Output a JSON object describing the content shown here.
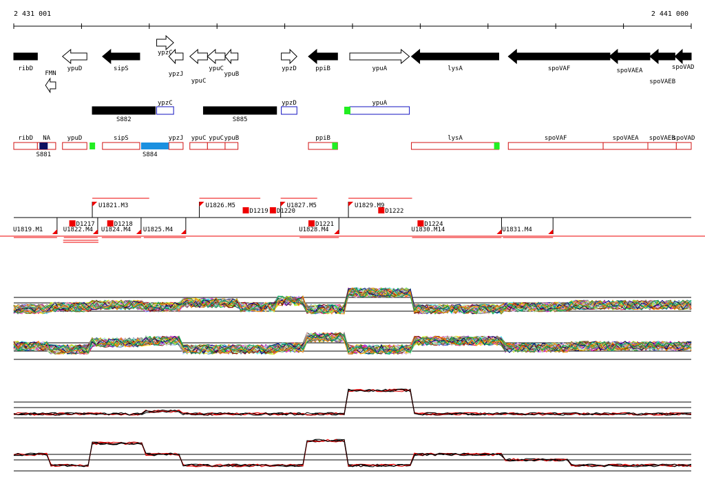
{
  "genome_browser": {
    "coordinates": {
      "start_label": "2 431 001",
      "end_label": "2 441 000",
      "start": 2431001,
      "end": 2441000
    },
    "genes": [
      {
        "name": "ribD",
        "filled": true,
        "dir": "none",
        "start": 2431001,
        "end": 2431350
      },
      {
        "name": "FMN",
        "filled": false,
        "dir": "left",
        "start": 2431470,
        "end": 2431620,
        "row": "lower"
      },
      {
        "name": "ypuD",
        "filled": false,
        "dir": "left",
        "start": 2431720,
        "end": 2432080
      },
      {
        "name": "sipS",
        "filled": true,
        "dir": "left",
        "start": 2432310,
        "end": 2432860
      },
      {
        "name": "ypzC",
        "filled": false,
        "dir": "right",
        "start": 2433110,
        "end": 2433360,
        "row": "upper"
      },
      {
        "name": "ypzJ",
        "filled": false,
        "dir": "left",
        "start": 2433290,
        "end": 2433500
      },
      {
        "name": "ypuC",
        "filled": false,
        "dir": "left",
        "start": 2433600,
        "end": 2433860
      },
      {
        "name": "ypuC",
        "filled": false,
        "dir": "left",
        "start": 2433860,
        "end": 2434120
      },
      {
        "name": "ypuB",
        "filled": false,
        "dir": "left",
        "start": 2434120,
        "end": 2434310
      },
      {
        "name": "ypzD",
        "filled": false,
        "dir": "right",
        "start": 2434950,
        "end": 2435180
      },
      {
        "name": "ppiB",
        "filled": true,
        "dir": "left",
        "start": 2435350,
        "end": 2435780
      },
      {
        "name": "ypuA",
        "filled": false,
        "dir": "right",
        "start": 2435960,
        "end": 2436840
      },
      {
        "name": "lysA",
        "filled": true,
        "dir": "left",
        "start": 2436870,
        "end": 2438160
      },
      {
        "name": "spoVAF",
        "filled": true,
        "dir": "left",
        "start": 2438300,
        "end": 2439800
      },
      {
        "name": "spoVAEA",
        "filled": true,
        "dir": "left",
        "start": 2439790,
        "end": 2440390
      },
      {
        "name": "spoVAEB",
        "filled": true,
        "dir": "left",
        "start": 2440390,
        "end": 2440760
      },
      {
        "name": "spoVAD",
        "filled": true,
        "dir": "left",
        "start": 2440760,
        "end": 2441000
      }
    ],
    "segments": [
      {
        "label": "S882",
        "start": 2432160,
        "end": 2433090,
        "filled": true
      },
      {
        "label": "ypzC",
        "start": 2433110,
        "end": 2433360,
        "filled": false
      },
      {
        "label": "S885",
        "start": 2433800,
        "end": 2434880,
        "filled": true
      },
      {
        "label": "ypzD",
        "start": 2434950,
        "end": 2435180,
        "filled": false
      },
      {
        "label": "ypuA",
        "start": 2435960,
        "end": 2436840,
        "filled": false,
        "marker": "green"
      }
    ],
    "operons": [
      {
        "label": "ribD",
        "start": 2431001,
        "end": 2431350
      },
      {
        "label": "NA",
        "start": 2431350,
        "end": 2431620
      },
      {
        "label": "ypuD",
        "start": 2431720,
        "end": 2432080
      },
      {
        "label": "sipS",
        "start": 2432310,
        "end": 2432860
      },
      {
        "label": "ypzJ",
        "start": 2433290,
        "end": 2433500
      },
      {
        "label": "ypuC",
        "start": 2433600,
        "end": 2433860
      },
      {
        "label": "ypuC",
        "start": 2433860,
        "end": 2434120
      },
      {
        "label": "ypuB",
        "start": 2434120,
        "end": 2434310
      },
      {
        "label": "ppiB",
        "start": 2435350,
        "end": 2435780
      },
      {
        "label": "lysA",
        "start": 2436870,
        "end": 2438160
      },
      {
        "label": "spoVAF",
        "start": 2438300,
        "end": 2439700
      },
      {
        "label": "spoVAEA",
        "start": 2439700,
        "end": 2440360
      },
      {
        "label": "spoVAEB",
        "start": 2440360,
        "end": 2440780
      },
      {
        "label": "spoVAD",
        "start": 2440780,
        "end": 2441000
      }
    ],
    "operon_extra_labels": [
      {
        "label": "S881",
        "pos": 2431380
      },
      {
        "label": "S884",
        "pos": 2432950
      }
    ],
    "tus_upper": [
      {
        "label": "U1821.M3",
        "start": 2432160,
        "end": 2433000
      },
      {
        "label": "U1826.M5",
        "start": 2433740,
        "end": 2434640
      },
      {
        "label": "U1827.M5",
        "start": 2434940,
        "end": 2435480
      },
      {
        "label": "U1829.M9",
        "start": 2435940,
        "end": 2436880
      }
    ],
    "tus_lower": [
      {
        "label": "U1819.M1",
        "start": 2431001,
        "end": 2431640
      },
      {
        "label": "U1822.M4",
        "start": 2431740,
        "end": 2432240
      },
      {
        "label": "U1824.M4",
        "start": 2432300,
        "end": 2432880
      },
      {
        "label": "U1825.M4",
        "start": 2432920,
        "end": 2433540
      },
      {
        "label": "U1828.M4",
        "start": 2435220,
        "end": 2435800
      },
      {
        "label": "U1830.M14",
        "start": 2436880,
        "end": 2438200
      },
      {
        "label": "U1831.M4",
        "start": 2438220,
        "end": 2438960
      }
    ],
    "down_labels": [
      {
        "label": "D1217",
        "pos": 2431820,
        "level": "low"
      },
      {
        "label": "D1218",
        "pos": 2432380,
        "level": "low"
      },
      {
        "label": "D1219",
        "pos": 2434380,
        "level": "mid"
      },
      {
        "label": "D1220",
        "pos": 2434780,
        "level": "mid"
      },
      {
        "label": "D1221",
        "pos": 2435350,
        "level": "low"
      },
      {
        "label": "D1222",
        "pos": 2436380,
        "level": "mid"
      },
      {
        "label": "D1224",
        "pos": 2436960,
        "level": "low"
      }
    ],
    "tracks": [
      {
        "name": "expression-a",
        "count": 40
      },
      {
        "name": "expression-b",
        "count": 40
      },
      {
        "name": "tiling-c",
        "count": 5
      },
      {
        "name": "tiling-d",
        "count": 5
      }
    ],
    "colors": {
      "ruler": "#000000",
      "operon_border": "#d01010",
      "segment_border": "#1010c0",
      "marker_green": "#22ee22",
      "marker_blue": "#1a90e0",
      "marker_navy": "#101060",
      "tu_red": "#ee0000",
      "track_black": "#000000",
      "track_red": "#e00000"
    }
  }
}
